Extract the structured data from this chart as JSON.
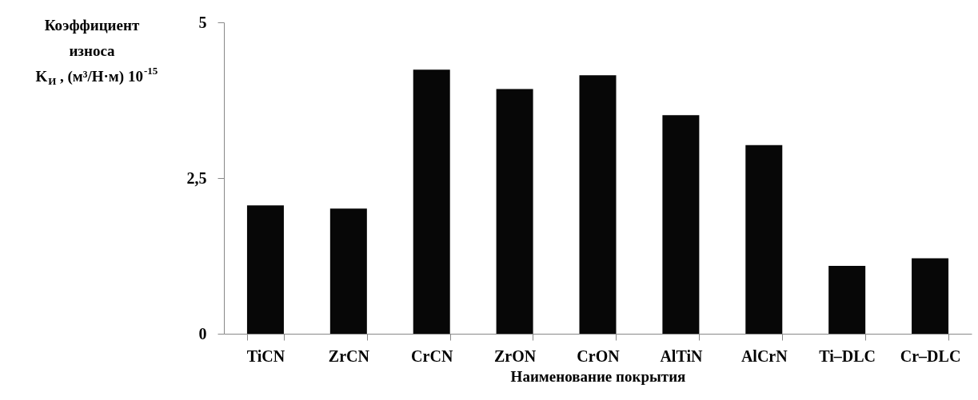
{
  "chart_data": {
    "type": "bar",
    "categories": [
      "TiCN",
      "ZrCN",
      "CrCN",
      "ZrON",
      "CrON",
      "AlTiN",
      "AlCrN",
      "Ti–DLC",
      "Cr–DLC"
    ],
    "values": [
      2.06,
      2.01,
      4.24,
      3.93,
      4.15,
      3.51,
      3.03,
      1.09,
      1.21
    ],
    "color": "#070707",
    "xlabel": "Наименование покрытия",
    "ylabel": "Коэффициент износа K$_{И}$, (м³/Н·м) 10$^{-15}$",
    "ylim": [
      0,
      5
    ],
    "yticks": [
      0,
      {
        "value": 2.5,
        "label": "2,5"
      },
      5
    ],
    "grid": false
  }
}
